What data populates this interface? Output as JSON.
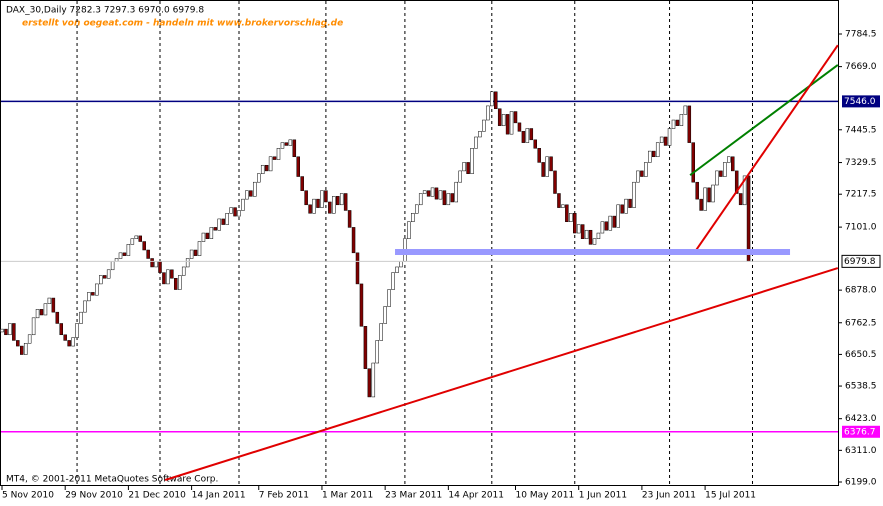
{
  "chart_data": {
    "type": "candlestick",
    "header": "DAX_30,Daily  7282.3 7297.3 6970.0 6979.8",
    "watermark": "erstellt von oegeat.com - handeln mit www.brokervorschlag.de",
    "copyright": "MT4, © 2001-2011 MetaQuotes Software Corp.",
    "up_color": "#ffffff",
    "down_color": "#800000",
    "open": [
      6730,
      6740,
      6720,
      6760,
      6700,
      6680,
      6650,
      6690,
      6720,
      6780,
      6810,
      6790,
      6830,
      6850,
      6800,
      6760,
      6720,
      6700,
      6680,
      6710,
      6760,
      6800,
      6840,
      6870,
      6860,
      6900,
      6930,
      6920,
      6950,
      6980,
      6990,
      7010,
      7000,
      7040,
      7060,
      7070,
      7050,
      7020,
      6990,
      6960,
      6980,
      6940,
      6900,
      6950,
      6920,
      6880,
      6930,
      6960,
      6990,
      7020,
      7000,
      7050,
      7080,
      7060,
      7100,
      7090,
      7130,
      7110,
      7150,
      7170,
      7140,
      7160,
      7200,
      7230,
      7210,
      7260,
      7290,
      7320,
      7300,
      7350,
      7340,
      7380,
      7400,
      7390,
      7410,
      7350,
      7280,
      7230,
      7180,
      7150,
      7200,
      7170,
      7230,
      7190,
      7150,
      7210,
      7180,
      7220,
      7160,
      7100,
      7010,
      6900,
      6750,
      6600,
      6500,
      6620,
      6700,
      6760,
      6820,
      6880,
      6940,
      6960,
      6980,
      7060,
      7120,
      7150,
      7180,
      7220,
      7230,
      7210,
      7240,
      7200,
      7230,
      7180,
      7220,
      7190,
      7260,
      7300,
      7330,
      7290,
      7380,
      7420,
      7440,
      7480,
      7530,
      7580,
      7520,
      7460,
      7500,
      7430,
      7510,
      7470,
      7440,
      7400,
      7450,
      7410,
      7380,
      7330,
      7280,
      7350,
      7300,
      7220,
      7170,
      7180,
      7120,
      7150,
      7080,
      7110,
      7060,
      7090,
      7040,
      7060,
      7080,
      7120,
      7090,
      7140,
      7100,
      7180,
      7150,
      7200,
      7170,
      7260,
      7300,
      7280,
      7330,
      7370,
      7350,
      7400,
      7420,
      7390,
      7450,
      7480,
      7460,
      7500,
      7530,
      7400,
      7260,
      7200,
      7160,
      7240,
      7190,
      7250,
      7300,
      7280,
      7330,
      7350,
      7300,
      7220,
      7180,
      7282.3
    ],
    "close": [
      6740,
      6720,
      6760,
      6700,
      6680,
      6650,
      6690,
      6720,
      6780,
      6810,
      6790,
      6830,
      6850,
      6800,
      6760,
      6720,
      6700,
      6680,
      6710,
      6760,
      6800,
      6840,
      6870,
      6860,
      6900,
      6930,
      6920,
      6950,
      6980,
      6990,
      7010,
      7000,
      7040,
      7060,
      7070,
      7050,
      7020,
      6990,
      6960,
      6980,
      6940,
      6900,
      6950,
      6920,
      6880,
      6930,
      6960,
      6990,
      7020,
      7000,
      7050,
      7080,
      7060,
      7100,
      7090,
      7130,
      7110,
      7150,
      7170,
      7140,
      7160,
      7200,
      7230,
      7210,
      7260,
      7290,
      7320,
      7300,
      7350,
      7340,
      7380,
      7400,
      7390,
      7410,
      7350,
      7280,
      7230,
      7180,
      7150,
      7200,
      7170,
      7230,
      7190,
      7150,
      7210,
      7180,
      7220,
      7160,
      7100,
      7010,
      6900,
      6750,
      6600,
      6500,
      6620,
      6700,
      6760,
      6820,
      6880,
      6940,
      6960,
      6980,
      7060,
      7120,
      7150,
      7180,
      7220,
      7230,
      7210,
      7240,
      7200,
      7230,
      7180,
      7220,
      7190,
      7260,
      7300,
      7330,
      7290,
      7380,
      7420,
      7440,
      7480,
      7530,
      7580,
      7520,
      7460,
      7500,
      7430,
      7510,
      7470,
      7440,
      7400,
      7450,
      7410,
      7380,
      7330,
      7280,
      7350,
      7300,
      7220,
      7170,
      7180,
      7120,
      7150,
      7080,
      7110,
      7060,
      7090,
      7040,
      7060,
      7080,
      7120,
      7090,
      7140,
      7100,
      7180,
      7150,
      7200,
      7170,
      7260,
      7300,
      7280,
      7330,
      7370,
      7350,
      7400,
      7420,
      7390,
      7450,
      7480,
      7460,
      7500,
      7530,
      7400,
      7260,
      7200,
      7160,
      7240,
      7190,
      7250,
      7300,
      7280,
      7330,
      7350,
      7300,
      7220,
      7180,
      7282.3,
      6979.8
    ],
    "ylim": [
      6184.8,
      7904.8
    ],
    "yticks": [
      7784.5,
      {
        "value": 7669,
        "label": "7669.0"
      },
      7445.5,
      7329.5,
      7217.5,
      {
        "value": 7101,
        "label": "7101.0"
      },
      {
        "value": 6878,
        "label": "6878.0"
      },
      6762.5,
      6650.5,
      6538.5,
      {
        "value": 6423,
        "label": "6423.0"
      },
      {
        "value": 6311,
        "label": "6311.0"
      },
      {
        "value": 6199,
        "label": "6199.0"
      }
    ],
    "xticks": [
      {
        "value": 0,
        "label": "5 Nov 2010"
      },
      {
        "value": 16,
        "label": "29 Nov 2010"
      },
      {
        "value": 32,
        "label": "21 Dec 2010"
      },
      {
        "value": 48,
        "label": "14 Jan 2011"
      },
      {
        "value": 65,
        "label": "7 Feb 2011"
      },
      {
        "value": 81,
        "label": "1 Mar 2011"
      },
      {
        "value": 97,
        "label": "23 Mar 2011"
      },
      {
        "value": 113,
        "label": "14 Apr 2011"
      },
      {
        "value": 130,
        "label": "10 May 2011"
      },
      {
        "value": 146,
        "label": "1 Jun 2011"
      },
      {
        "value": 162,
        "label": "23 Jun 2011"
      },
      {
        "value": 178,
        "label": "15 Jul 2011"
      }
    ],
    "xgrid": [
      19,
      40,
      60,
      82,
      102,
      124,
      145,
      169,
      190
    ],
    "hlines": [
      {
        "value": 7546,
        "label": "7546.0",
        "color": "#000080"
      },
      {
        "value": 6376.7,
        "label": "6376.7",
        "color": "#ff00ff"
      }
    ],
    "last_price": {
      "value": 6979.8,
      "label": "6979.8"
    },
    "trendlines": [
      {
        "color": "#e00000",
        "x": [
          41.3,
          211.6
        ],
        "y": [
          6206,
          6956
        ],
        "width": 2
      },
      {
        "color": "#008000",
        "x": [
          174.2,
          211.6
        ],
        "y": [
          7285,
          7675
        ],
        "width": 2
      },
      {
        "color": "#e00000",
        "x": [
          175.4,
          211.6
        ],
        "y": [
          7013,
          7745
        ],
        "width": 2
      },
      {
        "color": "#9999ff",
        "x": [
          99.5,
          199.5
        ],
        "y": [
          7013,
          7013
        ],
        "width": 6
      }
    ]
  }
}
